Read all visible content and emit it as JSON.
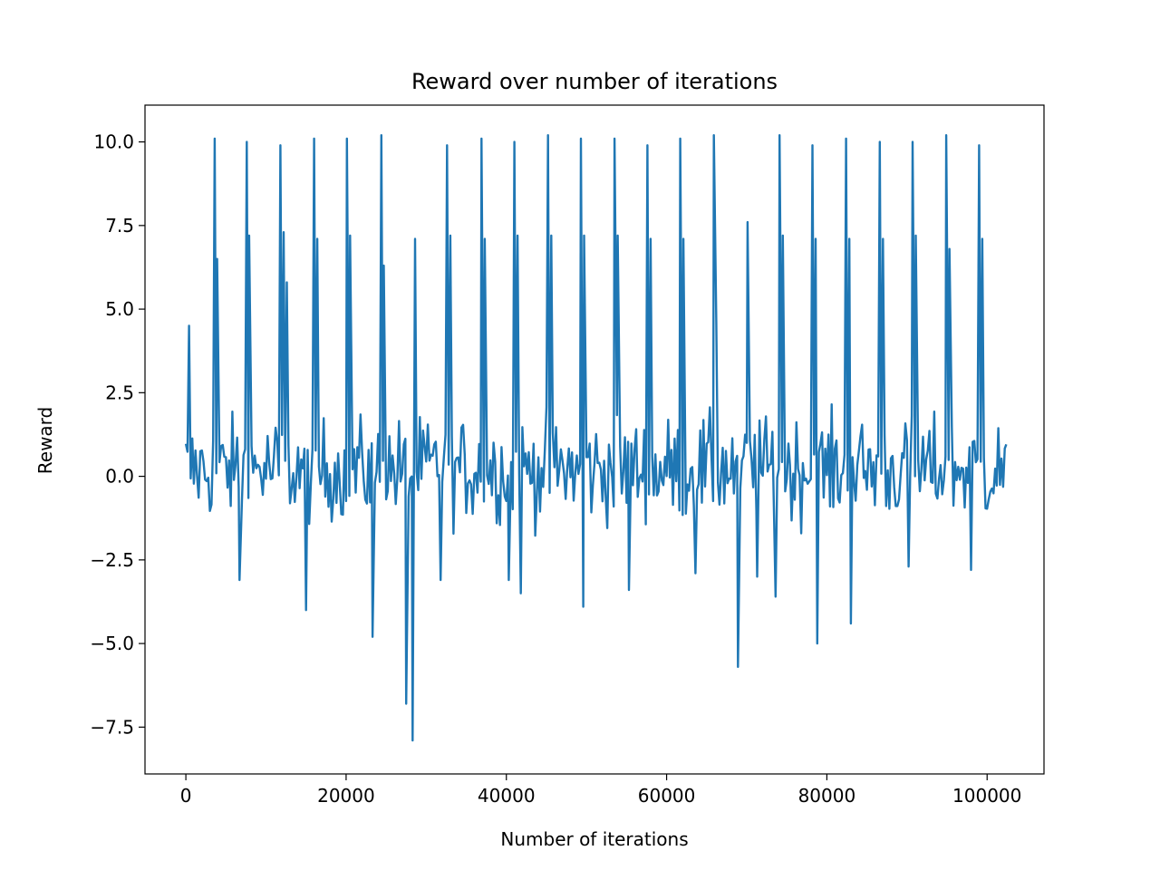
{
  "chart_data": {
    "type": "line",
    "title": "Reward over number of iterations",
    "xlabel": "Number of iterations",
    "ylabel": "Reward",
    "xlim": [
      -5100,
      107100
    ],
    "ylim": [
      -8.9,
      11.1
    ],
    "x_ticks": [
      0,
      20000,
      40000,
      60000,
      80000,
      100000
    ],
    "x_tick_labels": [
      "0",
      "20000",
      "40000",
      "60000",
      "80000",
      "100000"
    ],
    "y_ticks": [
      -7.5,
      -5.0,
      -2.5,
      0.0,
      2.5,
      5.0,
      7.5,
      10.0
    ],
    "y_tick_labels": [
      "−7.5",
      "−5.0",
      "−2.5",
      "0.0",
      "2.5",
      "5.0",
      "7.5",
      "10.0"
    ],
    "grid": false,
    "series_color": "#1f77b4",
    "x_max": 102400,
    "sample_step": 200,
    "baseline_amplitude": 1.1,
    "spikes": [
      {
        "x": 400,
        "y": 4.5
      },
      {
        "x": 3600,
        "y": 10.1
      },
      {
        "x": 3900,
        "y": 6.5
      },
      {
        "x": 7600,
        "y": 10.0
      },
      {
        "x": 7900,
        "y": 7.2
      },
      {
        "x": 11800,
        "y": 9.9
      },
      {
        "x": 12200,
        "y": 7.3
      },
      {
        "x": 12600,
        "y": 5.8
      },
      {
        "x": 16000,
        "y": 10.1
      },
      {
        "x": 16400,
        "y": 7.1
      },
      {
        "x": 20100,
        "y": 10.1
      },
      {
        "x": 20500,
        "y": 7.2
      },
      {
        "x": 24400,
        "y": 10.2
      },
      {
        "x": 24700,
        "y": 6.3
      },
      {
        "x": 28600,
        "y": 7.1
      },
      {
        "x": 32600,
        "y": 9.9
      },
      {
        "x": 33000,
        "y": 7.2
      },
      {
        "x": 36900,
        "y": 10.1
      },
      {
        "x": 37300,
        "y": 7.1
      },
      {
        "x": 41000,
        "y": 10.0
      },
      {
        "x": 41400,
        "y": 7.2
      },
      {
        "x": 41800,
        "y": 4.8
      },
      {
        "x": 45200,
        "y": 10.2
      },
      {
        "x": 45600,
        "y": 7.2
      },
      {
        "x": 49300,
        "y": 10.1
      },
      {
        "x": 49700,
        "y": 7.2
      },
      {
        "x": 53500,
        "y": 10.1
      },
      {
        "x": 53900,
        "y": 7.2
      },
      {
        "x": 57600,
        "y": 9.9
      },
      {
        "x": 58000,
        "y": 7.1
      },
      {
        "x": 61700,
        "y": 10.1
      },
      {
        "x": 62100,
        "y": 7.1
      },
      {
        "x": 65900,
        "y": 10.2
      },
      {
        "x": 66200,
        "y": 4.6
      },
      {
        "x": 70100,
        "y": 7.6
      },
      {
        "x": 74100,
        "y": 10.2
      },
      {
        "x": 74500,
        "y": 7.2
      },
      {
        "x": 78200,
        "y": 9.9
      },
      {
        "x": 78600,
        "y": 7.1
      },
      {
        "x": 82400,
        "y": 10.1
      },
      {
        "x": 82800,
        "y": 7.1
      },
      {
        "x": 86600,
        "y": 10.0
      },
      {
        "x": 87000,
        "y": 7.1
      },
      {
        "x": 90700,
        "y": 10.0
      },
      {
        "x": 91100,
        "y": 7.2
      },
      {
        "x": 94900,
        "y": 10.2
      },
      {
        "x": 95300,
        "y": 6.8
      },
      {
        "x": 99000,
        "y": 9.9
      },
      {
        "x": 99400,
        "y": 7.1
      },
      {
        "x": 6700,
        "y": -3.1
      },
      {
        "x": 15000,
        "y": -4.0
      },
      {
        "x": 23300,
        "y": -4.8
      },
      {
        "x": 27500,
        "y": -6.8
      },
      {
        "x": 28300,
        "y": -7.9
      },
      {
        "x": 31800,
        "y": -3.1
      },
      {
        "x": 40300,
        "y": -3.1
      },
      {
        "x": 41800,
        "y": -3.5
      },
      {
        "x": 49600,
        "y": -3.9
      },
      {
        "x": 55300,
        "y": -3.4
      },
      {
        "x": 63600,
        "y": -2.9
      },
      {
        "x": 68900,
        "y": -5.7
      },
      {
        "x": 71300,
        "y": -3.0
      },
      {
        "x": 73600,
        "y": -3.6
      },
      {
        "x": 78800,
        "y": -5.0
      },
      {
        "x": 83000,
        "y": -4.4
      },
      {
        "x": 90200,
        "y": -2.7
      },
      {
        "x": 98000,
        "y": -2.8
      }
    ]
  }
}
